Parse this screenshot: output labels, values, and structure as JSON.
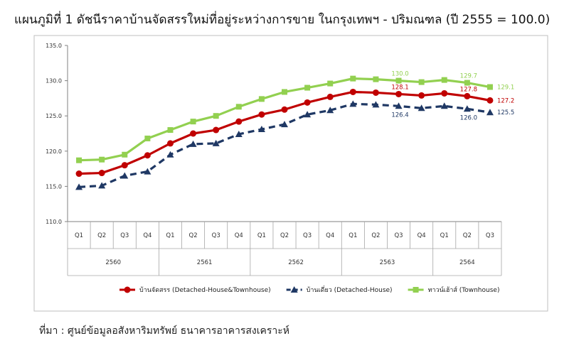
{
  "chart_data": {
    "type": "line",
    "title": "แผนภูมิที่ 1 ดัชนีราคาบ้านจัดสรรใหม่ที่อยู่ระหว่างการขาย ในกรุงเทพฯ - ปริมณฑล (ปี 2555 = 100.0)",
    "xlabel": "",
    "ylabel": "",
    "ylim": [
      110,
      135
    ],
    "yticks": [
      "135.0",
      "130.0",
      "125.0",
      "120.0",
      "115.0",
      "110.0"
    ],
    "grid": false,
    "legend_position": "bottom",
    "categories": [
      "Q1",
      "Q2",
      "Q3",
      "Q4",
      "Q1",
      "Q2",
      "Q3",
      "Q4",
      "Q1",
      "Q2",
      "Q3",
      "Q4",
      "Q1",
      "Q2",
      "Q3",
      "Q4",
      "Q1",
      "Q2",
      "Q3"
    ],
    "year_groups": [
      {
        "label": "2560",
        "count": 4
      },
      {
        "label": "2561",
        "count": 4
      },
      {
        "label": "2562",
        "count": 4
      },
      {
        "label": "2563",
        "count": 4
      },
      {
        "label": "2564",
        "count": 3
      }
    ],
    "series": [
      {
        "name": "ทาวน์เฮ้าส์ (Townhouse)",
        "color": "#92d050",
        "marker": "square",
        "dashed": false,
        "values": [
          118.7,
          118.8,
          119.5,
          121.8,
          123.0,
          124.2,
          125.0,
          126.3,
          127.4,
          128.4,
          129.0,
          129.6,
          130.3,
          130.2,
          130.0,
          129.8,
          130.1,
          129.7,
          129.1
        ],
        "labels": [
          {
            "index": 14,
            "text": "130.0"
          },
          {
            "index": 17,
            "text": "129.7"
          },
          {
            "index": 18,
            "text": "129.1"
          }
        ]
      },
      {
        "name": "บ้านจัดสรร (Detached-House&Townhouse)",
        "color": "#c00000",
        "marker": "circle",
        "dashed": false,
        "values": [
          116.8,
          116.9,
          118.0,
          119.4,
          121.1,
          122.5,
          123.0,
          124.2,
          125.2,
          125.9,
          126.9,
          127.7,
          128.4,
          128.3,
          128.1,
          127.9,
          128.2,
          127.8,
          127.2
        ],
        "labels": [
          {
            "index": 14,
            "text": "128.1"
          },
          {
            "index": 17,
            "text": "127.8"
          },
          {
            "index": 18,
            "text": "127.2"
          }
        ]
      },
      {
        "name": "บ้านเดี่ยว (Detached-House)",
        "color": "#1f3864",
        "marker": "triangle",
        "dashed": true,
        "values": [
          114.9,
          115.1,
          116.5,
          117.1,
          119.5,
          121.0,
          121.1,
          122.4,
          123.1,
          123.8,
          125.2,
          125.8,
          126.7,
          126.6,
          126.4,
          126.1,
          126.4,
          126.0,
          125.5
        ],
        "labels": [
          {
            "index": 14,
            "text": "126.4"
          },
          {
            "index": 17,
            "text": "126.0"
          },
          {
            "index": 18,
            "text": "125.5"
          }
        ]
      }
    ],
    "legend_order": [
      1,
      2,
      0
    ]
  },
  "source_note": "ที่มา : ศูนย์ข้อมูลอสังหาริมทรัพย์ ธนาคารอาคารสงเคราะห์"
}
